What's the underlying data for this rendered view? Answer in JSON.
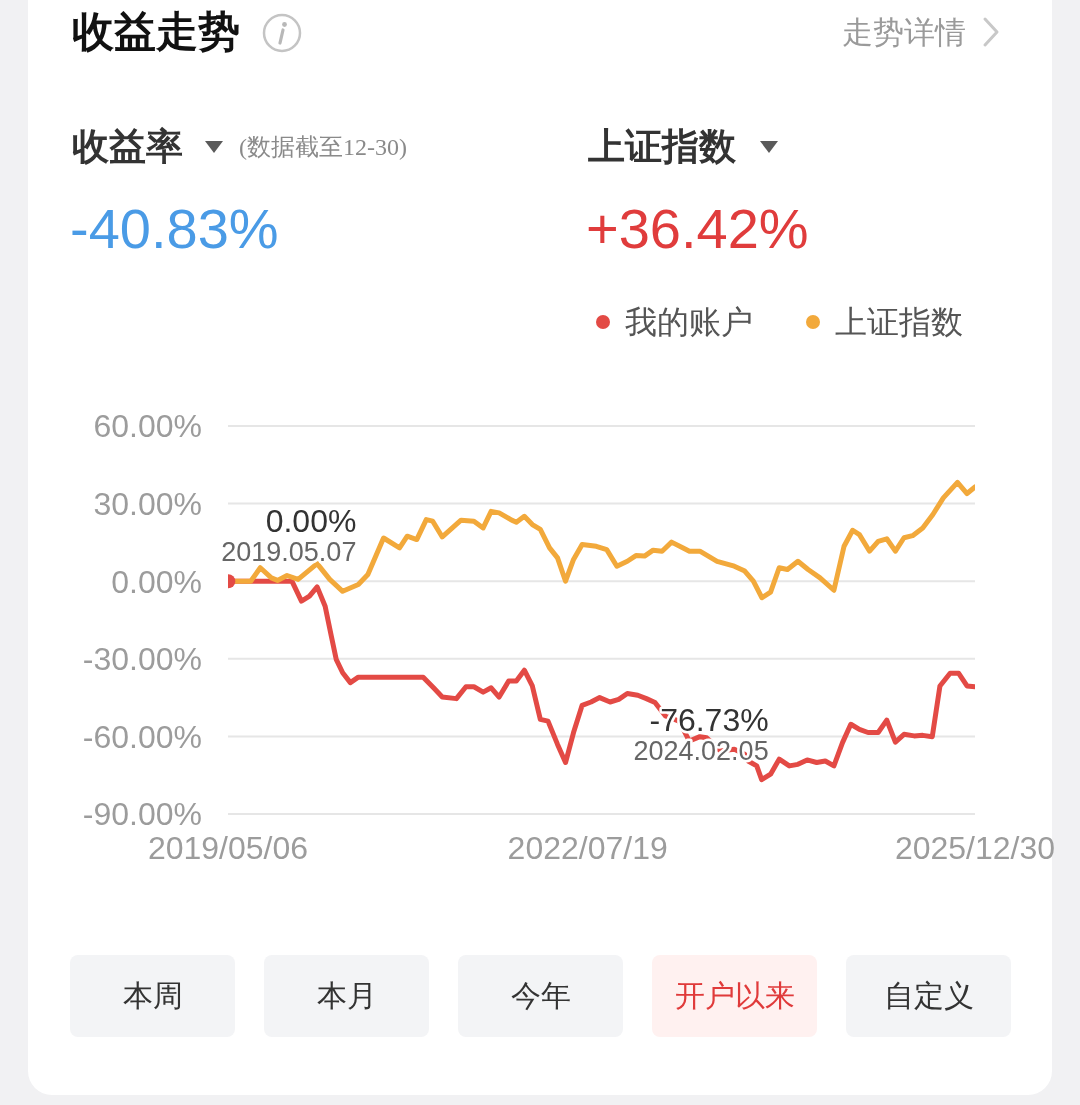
{
  "chart_data": {
    "type": "line",
    "title": "收益走势",
    "annotations": [
      "走势详情",
      "收益率",
      "(数据截至12-30)",
      "上证指数",
      "-40.83%",
      "+36.42%",
      "本周",
      "本月",
      "今年",
      "开户以来",
      "自定义",
      {
        "text": "0.00%",
        "x": "2019-05-07",
        "y": 0
      },
      {
        "text": "2019.05.07",
        "x": "2019-05-07",
        "y": 0
      },
      {
        "text": "-76.73%",
        "x": "2024-02-05",
        "y": -76.73
      },
      {
        "text": "2024.02.05",
        "x": "2024-02-05",
        "y": -76.73
      }
    ],
    "series": [
      {
        "name": "我的账户",
        "color": "#e34a45",
        "x": [
          "2019-05-07",
          "2019-11-30",
          "2019-12-31",
          "2020-01-26",
          "2020-02-20",
          "2020-03-17",
          "2020-04-06",
          "2020-04-22",
          "2020-05-13",
          "2020-06-07",
          "2020-07-03",
          "2021-01-30",
          "2021-03-07",
          "2021-04-02",
          "2021-05-18",
          "2021-06-18",
          "2021-07-14",
          "2021-08-13",
          "2021-09-08",
          "2021-10-04",
          "2021-11-04",
          "2021-11-29",
          "2021-12-25",
          "2022-01-20",
          "2022-02-15",
          "2022-03-12",
          "2022-04-12",
          "2022-05-08",
          "2022-06-03",
          "2022-07-01",
          "2022-07-30",
          "2022-08-27",
          "2022-09-30",
          "2022-10-28",
          "2022-11-25",
          "2022-12-29",
          "2023-01-26",
          "2023-02-23",
          "2023-03-29",
          "2023-05-12",
          "2023-06-15",
          "2023-07-19",
          "2023-08-10",
          "2023-09-24",
          "2023-11-08",
          "2023-12-12",
          "2023-12-23",
          "2024-01-20",
          "2024-02-05",
          "2024-03-05",
          "2024-04-02",
          "2024-05-05",
          "2024-06-02",
          "2024-07-02",
          "2024-08-02",
          "2024-08-30",
          "2024-09-27",
          "2024-10-25",
          "2024-11-21",
          "2024-12-19",
          "2025-01-16",
          "2025-02-18",
          "2025-03-18",
          "2025-04-15",
          "2025-05-13",
          "2025-06-15",
          "2025-07-13",
          "2025-08-13",
          "2025-09-07",
          "2025-10-10",
          "2025-11-07",
          "2025-12-04",
          "2025-12-30"
        ],
        "values": [
          0,
          0,
          -7.7,
          -5.8,
          -2.2,
          -9.7,
          -21.2,
          -30.2,
          -35.4,
          -39.2,
          -37.1,
          -37.1,
          -41.5,
          -44.8,
          -45.4,
          -40.8,
          -40.8,
          -42.9,
          -41.2,
          -44.8,
          -38.6,
          -38.6,
          -34.4,
          -40.5,
          -53.4,
          -54.1,
          -63.1,
          -70.1,
          -58.5,
          -48,
          -46.7,
          -45,
          -46.7,
          -45.7,
          -43.4,
          -44.1,
          -45.4,
          -46.9,
          -52.1,
          -54.1,
          -61.8,
          -60.1,
          -60.5,
          -65.6,
          -65,
          -66.9,
          -69.5,
          -71.4,
          -76.73,
          -74.6,
          -68.8,
          -71.4,
          -70.8,
          -69.1,
          -70.1,
          -69.5,
          -71.4,
          -62.4,
          -55.3,
          -57.3,
          -58.5,
          -58.5,
          -53.7,
          -62.2,
          -59.2,
          -59.8,
          -59.6,
          -60.1,
          -40.5,
          -35.6,
          -35.6,
          -40.5,
          -40.83
        ]
      },
      {
        "name": "上证指数",
        "color": "#f2a93b",
        "x": [
          "2019-05-06",
          "2019-07-19",
          "2019-08-19",
          "2019-09-24",
          "2019-10-14",
          "2019-11-14",
          "2019-12-20",
          "2020-02-20",
          "2020-04-01",
          "2020-05-13",
          "2020-07-03",
          "2020-08-03",
          "2020-09-23",
          "2020-11-14",
          "2020-12-09",
          "2021-01-09",
          "2021-02-09",
          "2021-03-02",
          "2021-04-02",
          "2021-06-02",
          "2021-07-14",
          "2021-08-13",
          "2021-09-08",
          "2021-10-04",
          "2021-11-14",
          "2021-11-29",
          "2021-12-25",
          "2022-01-20",
          "2022-02-15",
          "2022-03-17",
          "2022-04-12",
          "2022-05-08",
          "2022-06-03",
          "2022-07-01",
          "2022-08-16",
          "2022-09-19",
          "2022-10-22",
          "2022-11-25",
          "2022-12-23",
          "2023-01-20",
          "2023-02-17",
          "2023-03-18",
          "2023-04-18",
          "2023-05-24",
          "2023-06-15",
          "2023-07-19",
          "2023-09-13",
          "2023-11-08",
          "2023-12-12",
          "2024-01-09",
          "2024-02-06",
          "2024-03-05",
          "2024-04-02",
          "2024-04-29",
          "2024-06-02",
          "2024-07-05",
          "2024-08-13",
          "2024-09-27",
          "2024-10-30",
          "2024-11-27",
          "2024-12-19",
          "2025-01-21",
          "2025-02-18",
          "2025-03-18",
          "2025-04-15",
          "2025-05-13",
          "2025-06-10",
          "2025-07-13",
          "2025-08-15",
          "2025-09-18",
          "2025-11-03",
          "2025-12-04",
          "2025-12-30"
        ],
        "values": [
          0,
          0,
          5.2,
          1.3,
          0.3,
          2.2,
          0.7,
          6.8,
          0.7,
          -3.9,
          -1.3,
          2.6,
          16.7,
          12.9,
          17.4,
          16.1,
          23.8,
          23.2,
          17.1,
          23.6,
          23.2,
          20.6,
          27,
          26.4,
          23.6,
          22.8,
          25.1,
          21.9,
          20,
          12.9,
          9,
          0,
          8.4,
          14.2,
          13.5,
          12.2,
          5.8,
          7.7,
          9.9,
          9.7,
          12,
          11.6,
          15.1,
          12.9,
          11.6,
          11.6,
          7.7,
          5.8,
          3.9,
          0,
          -6.4,
          -4.2,
          5.2,
          4.5,
          7.7,
          4.5,
          1.3,
          -3.5,
          13.5,
          19.7,
          18,
          11.6,
          15.4,
          16.4,
          11.6,
          16.8,
          17.6,
          20.6,
          25.8,
          32.2,
          38.2,
          33.9,
          36.42
        ]
      },
      {
        "type": "scatter",
        "color": "#e34a45",
        "x": [
          "2019-05-07"
        ],
        "values": [
          0
        ]
      }
    ],
    "xlim": [
      "2019-05-06",
      "2025-12-30"
    ],
    "xticks": [
      {
        "value": "2019-05-06",
        "label": "2019/05/06"
      },
      {
        "value": "2022-07-19",
        "label": "2022/07/19"
      },
      {
        "value": "2025-12-30",
        "label": "2025/12/30"
      }
    ],
    "ylim": [
      -90,
      60
    ],
    "yticks": [
      {
        "value": 60,
        "label": "60.00%"
      },
      {
        "value": 30,
        "label": "30.00%"
      },
      {
        "value": 0,
        "label": "0.00%"
      },
      {
        "value": -30,
        "label": "-30.00%"
      },
      {
        "value": -60,
        "label": "-60.00%"
      },
      {
        "value": -90,
        "label": "-90.00%"
      }
    ],
    "grid": "y",
    "legend": "top right"
  }
}
